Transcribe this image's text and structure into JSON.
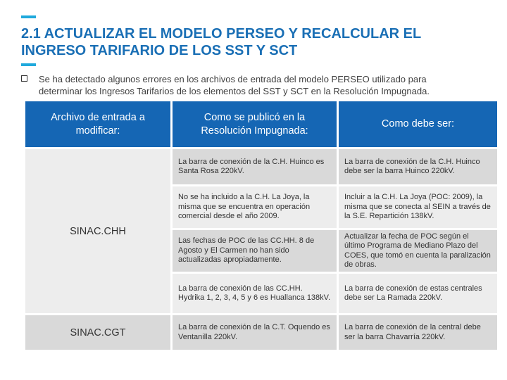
{
  "title": {
    "line1": "2.1 ACTUALIZAR EL MODELO PERSEO Y RECALCULAR EL",
    "line2": "INGRESO TARIFARIO DE LOS SST Y SCT"
  },
  "bullet": {
    "line1": "Se ha detectado algunos errores en los archivos de entrada del modelo PERSEO utilizado para",
    "line2": "determinar los Ingresos Tarifarios de los elementos del SST y SCT en la Resolución Impugnada."
  },
  "table": {
    "headers": {
      "col1_line1": "Archivo de entrada a",
      "col1_line2": "modificar:",
      "col2_line1": "Como se publicó en la",
      "col2_line2": "Resolución Impugnada:",
      "col3": "Como debe ser:"
    },
    "groups": {
      "chh": "SINAC.CHH",
      "cgt": "SINAC.CGT"
    },
    "rows": [
      {
        "published": "La barra de conexión de la C.H. Huinco es Santa Rosa 220kV.",
        "correct": "La barra de conexión de la C.H. Huinco debe ser la barra Huinco 220kV."
      },
      {
        "published": "No se ha incluido a la C.H. La Joya, la misma que se encuentra en operación comercial desde el año 2009.",
        "correct": "Incluir a la C.H. La Joya (POC: 2009), la misma que se conecta al SEIN a través de la S.E. Repartición 138kV."
      },
      {
        "published": "Las fechas de POC de las CC.HH. 8 de Agosto y El Carmen no han sido actualizadas apropiadamente.",
        "correct": "Actualizar la fecha de POC según el último Programa de Mediano Plazo del COES, que tomó en cuenta la paralización de obras."
      },
      {
        "published": "La barra de conexión de las CC.HH. Hydrika 1, 2, 3, 4, 5 y 6 es Huallanca 138kV.",
        "correct": "La barra de conexión de estas centrales debe ser La Ramada 220kV."
      },
      {
        "published": "La barra de conexión de la C.T. Oquendo es Ventanilla 220kV.",
        "correct": "La barra de conexión de la central debe ser la barra Chavarría 220kV."
      }
    ]
  },
  "colors": {
    "title": "#1A6FB5",
    "header_bg": "#1566B4",
    "accent": "#1FA9DC",
    "cell_dark": "#D9D9D9",
    "cell_light": "#EDEDED"
  }
}
